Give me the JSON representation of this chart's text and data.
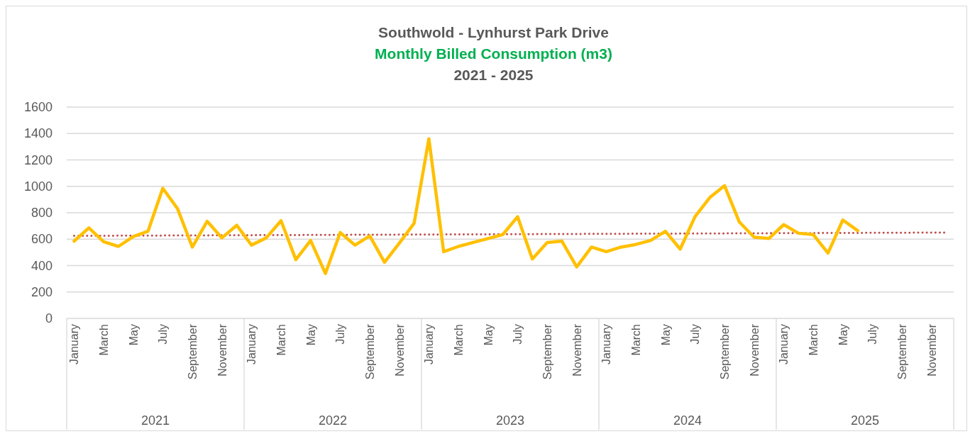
{
  "chart_data": {
    "type": "line",
    "title": "Southwold - Lynhurst Park Drive",
    "subtitle": "Monthly Billed Consumption (m3)",
    "annotations": [
      "2021 - 2025",
      "2021",
      "2022",
      "2023",
      "2024",
      "2025"
    ],
    "categories": [
      "January",
      null,
      "March",
      null,
      "May",
      null,
      "July",
      null,
      "September",
      null,
      "November",
      null,
      "January",
      null,
      "March",
      null,
      "May",
      null,
      "July",
      null,
      "September",
      null,
      "November",
      null,
      "January",
      null,
      "March",
      null,
      "May",
      null,
      "July",
      null,
      "September",
      null,
      "November",
      null,
      "January",
      null,
      "March",
      null,
      "May",
      null,
      "July",
      null,
      "September",
      null,
      "November",
      null,
      "January",
      null,
      "March",
      null,
      "May",
      null,
      "July",
      null,
      "September",
      null,
      "November",
      null
    ],
    "series": [
      {
        "color": "#ffc000",
        "values": [
          585,
          685,
          580,
          545,
          620,
          660,
          985,
          830,
          540,
          735,
          610,
          705,
          555,
          610,
          740,
          445,
          590,
          340,
          650,
          555,
          625,
          425,
          570,
          720,
          1360,
          505,
          545,
          575,
          605,
          635,
          770,
          450,
          575,
          585,
          390,
          540,
          505,
          540,
          560,
          590,
          660,
          525,
          770,
          915,
          1005,
          730,
          615,
          605,
          710,
          645,
          635,
          495,
          745,
          665,
          null,
          null,
          null,
          null,
          null,
          null
        ]
      },
      {
        "color": "#c0504d",
        "line_style": "dotted",
        "values": [
          625,
          null,
          null,
          null,
          null,
          null,
          null,
          null,
          null,
          null,
          null,
          null,
          null,
          null,
          null,
          null,
          null,
          null,
          null,
          null,
          null,
          null,
          null,
          null,
          null,
          null,
          null,
          null,
          null,
          null,
          null,
          null,
          null,
          null,
          null,
          null,
          null,
          null,
          null,
          null,
          null,
          null,
          null,
          null,
          null,
          null,
          null,
          null,
          null,
          null,
          null,
          null,
          null,
          null,
          null,
          null,
          null,
          null,
          null,
          650
        ]
      }
    ],
    "ylim": [
      0,
      1600
    ],
    "yticks": [
      0,
      200,
      400,
      600,
      800,
      1000,
      1200,
      1400,
      1600
    ],
    "grid": "y"
  }
}
